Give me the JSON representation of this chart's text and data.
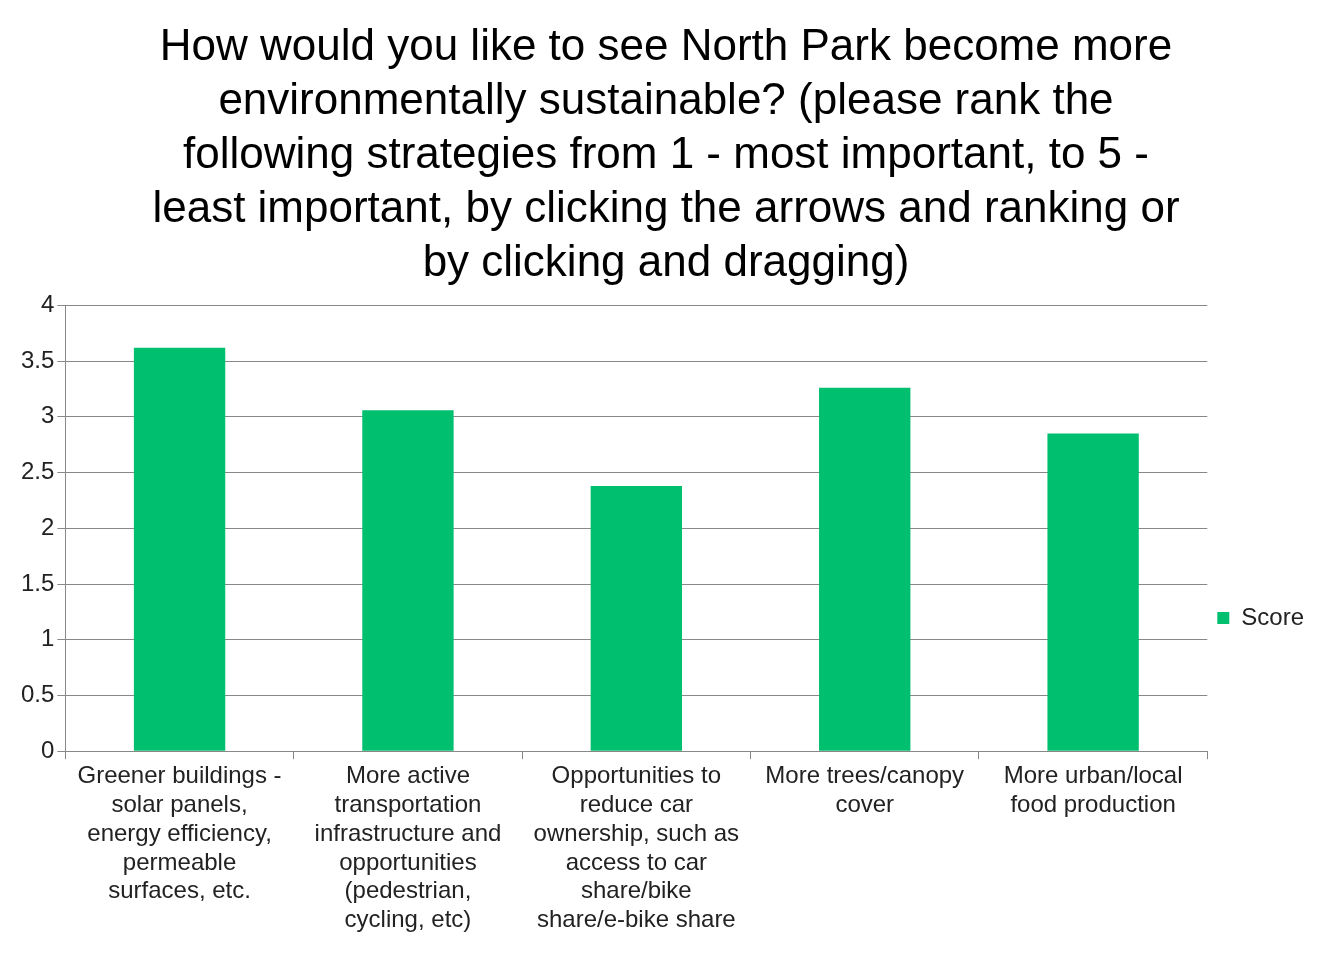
{
  "chart_data": {
    "type": "bar",
    "title": "How would you like to see North Park become more environmentally sustainable? (please rank the following strategies from 1 - most important, to 5 - least important, by clicking the arrows and ranking or by clicking and dragging)",
    "categories": [
      "Greener buildings - solar panels, energy efficiency, permeable surfaces, etc.",
      "More active transportation infrastructure and opportunities (pedestrian, cycling, etc)",
      "Opportunities to reduce car ownership, such as access to car share/bike share/e-bike share",
      "More trees/canopy cover",
      "More urban/local food production"
    ],
    "series": [
      {
        "name": "Score",
        "color": "#00bf6f",
        "values": [
          3.62,
          3.06,
          2.38,
          3.26,
          2.85
        ]
      }
    ],
    "ylim": [
      0,
      4
    ],
    "yticks": [
      0,
      0.5,
      1,
      1.5,
      2,
      2.5,
      3,
      3.5,
      4
    ],
    "grid": "y",
    "legend": "right"
  }
}
